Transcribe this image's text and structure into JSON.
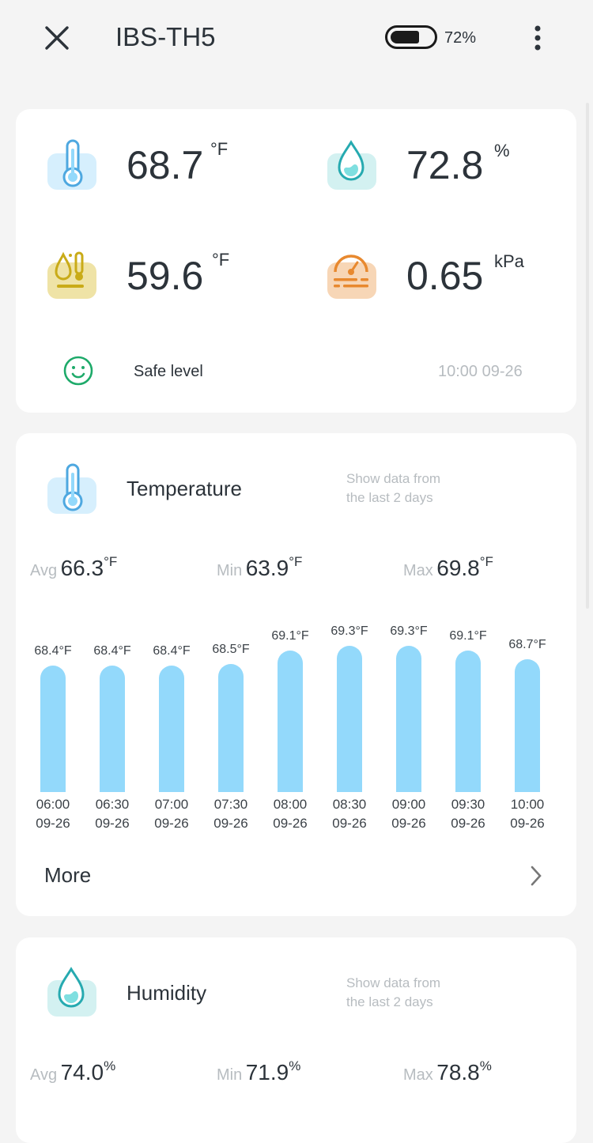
{
  "header": {
    "title": "IBS-TH5",
    "battery": "72%",
    "battery_level": 0.72
  },
  "summary": {
    "temperature": {
      "value": "68.7",
      "unit": "°F"
    },
    "humidity": {
      "value": "72.8",
      "unit": "%"
    },
    "dew_point": {
      "value": "59.6",
      "unit": "°F"
    },
    "vpd": {
      "value": "0.65",
      "unit": "kPa"
    },
    "status": "Safe level",
    "timestamp": "10:00 09-26"
  },
  "temperature_card": {
    "title": "Temperature",
    "note_line1": "Show data from",
    "note_line2": "the last 2 days",
    "avg_label": "Avg",
    "avg": "66.3",
    "min_label": "Min",
    "min": "63.9",
    "max_label": "Max",
    "max": "69.8",
    "unit": "°F",
    "more": "More"
  },
  "humidity_card": {
    "title": "Humidity",
    "note_line1": "Show data from",
    "note_line2": "the last 2 days",
    "avg_label": "Avg",
    "avg": "74.0",
    "min_label": "Min",
    "min": "71.9",
    "max_label": "Max",
    "max": "78.8",
    "unit": "%"
  },
  "chart_data": {
    "type": "bar",
    "title": "Temperature",
    "unit": "°F",
    "categories": [
      "06:00\n09-26",
      "06:30\n09-26",
      "07:00\n09-26",
      "07:30\n09-26",
      "08:00\n09-26",
      "08:30\n09-26",
      "09:00\n09-26",
      "09:30\n09-26",
      "10:00\n09-26"
    ],
    "times": [
      "06:00",
      "06:30",
      "07:00",
      "07:30",
      "08:00",
      "08:30",
      "09:00",
      "09:30",
      "10:00"
    ],
    "dates": [
      "09-26",
      "09-26",
      "09-26",
      "09-26",
      "09-26",
      "09-26",
      "09-26",
      "09-26",
      "09-26"
    ],
    "values": [
      68.4,
      68.4,
      68.4,
      68.5,
      69.1,
      69.3,
      69.3,
      69.1,
      68.7
    ],
    "labels": [
      "68.4°F",
      "68.4°F",
      "68.4°F",
      "68.5°F",
      "69.1°F",
      "69.3°F",
      "69.3°F",
      "69.1°F",
      "68.7°F"
    ],
    "color": "#93d9fb"
  }
}
